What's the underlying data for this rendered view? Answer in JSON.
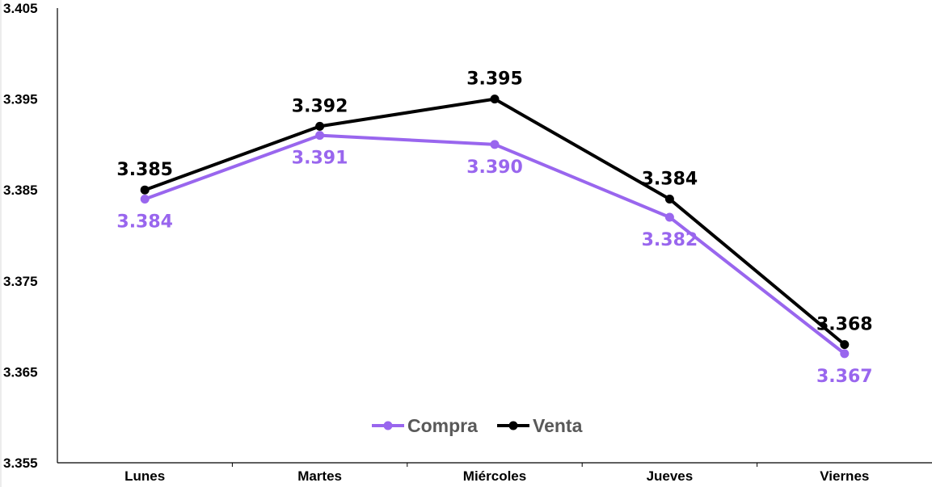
{
  "chart_data": {
    "type": "line",
    "categories": [
      "Lunes",
      "Martes",
      "Miércoles",
      "Jueves",
      "Viernes"
    ],
    "series": [
      {
        "name": "Compra",
        "color": "#9966ee",
        "values": [
          3.384,
          3.391,
          3.39,
          3.382,
          3.367
        ],
        "labels": [
          "3.384",
          "3.391",
          "3.390",
          "3.382",
          "3.367"
        ]
      },
      {
        "name": "Venta",
        "color": "#000000",
        "values": [
          3.385,
          3.392,
          3.395,
          3.384,
          3.368
        ],
        "labels": [
          "3.385",
          "3.392",
          "3.395",
          "3.384",
          "3.368"
        ]
      }
    ],
    "ylim": [
      3.355,
      3.405
    ],
    "yticks": [
      "3.355",
      "3.365",
      "3.375",
      "3.385",
      "3.395",
      "3.405"
    ],
    "grid": false,
    "legend_position": "bottom-center"
  }
}
